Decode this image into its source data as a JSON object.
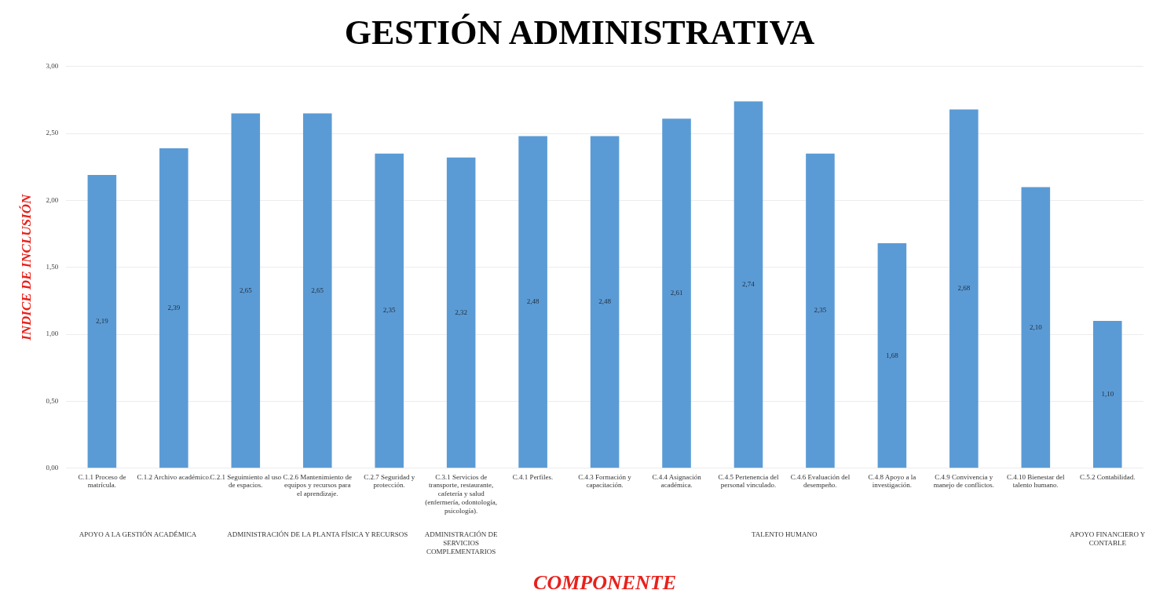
{
  "chart_data": {
    "type": "bar",
    "title": "GESTIÓN ADMINISTRATIVA",
    "xlabel": "COMPONENTE",
    "ylabel": "INDICE DE INCLUSIÓN",
    "categories": [
      "C.1.1 Proceso de matrícula.",
      "C.1.2 Archivo académico.",
      "C.2.1 Seguimiento al uso de espacios.",
      "C.2.6 Mantenimiento de equipos y recursos para el aprendizaje.",
      "C.2.7 Seguridad y protección.",
      "C.3.1 Servicios de transporte, restaurante, cafetería y salud (enfermería, odontología, psicología).",
      "C.4.1 Perfiles.",
      "C.4.3 Formación y capacitación.",
      "C.4.4 Asignación académica.",
      "C.4.5 Pertenencia del personal vinculado.",
      "C.4.6 Evaluación del desempeño.",
      "C.4.8 Apoyo a la investigación.",
      "C.4.9 Convivencia y manejo de conflictos.",
      "C.4.10 Bienestar del talento humano.",
      "C.5.2 Contabilidad."
    ],
    "values": [
      2.19,
      2.39,
      2.65,
      2.65,
      2.35,
      2.32,
      2.48,
      2.48,
      2.61,
      2.74,
      2.35,
      1.68,
      2.68,
      2.1,
      1.1
    ],
    "value_labels": [
      "2,19",
      "2,39",
      "2,65",
      "2,65",
      "2,35",
      "2,32",
      "2,48",
      "2,48",
      "2,61",
      "2,74",
      "2,35",
      "1,68",
      "2,68",
      "2,10",
      "1,10"
    ],
    "color": "#5b9bd5",
    "ylim": [
      0,
      3
    ],
    "yticks": [
      {
        "value": 0,
        "label": "0,00"
      },
      {
        "value": 0.5,
        "label": "0,50"
      },
      {
        "value": 1,
        "label": "1,00"
      },
      {
        "value": 1.5,
        "label": "1,50"
      },
      {
        "value": 2,
        "label": "2,00"
      },
      {
        "value": 2.5,
        "label": "2,50"
      },
      {
        "value": 3,
        "label": "3,00"
      }
    ],
    "grid": "y",
    "legend": false,
    "annotations": [
      "APOYO A LA GESTIÓN ACADÉMICA",
      "ADMINISTRACIÓN DE LA PLANTA FÍSICA Y RECURSOS",
      "ADMINISTRACIÓN DE SERVICIOS COMPLEMENTARIOS",
      "TALENTO HUMANO",
      "APOYO FINANCIERO Y CONTABLE"
    ]
  }
}
